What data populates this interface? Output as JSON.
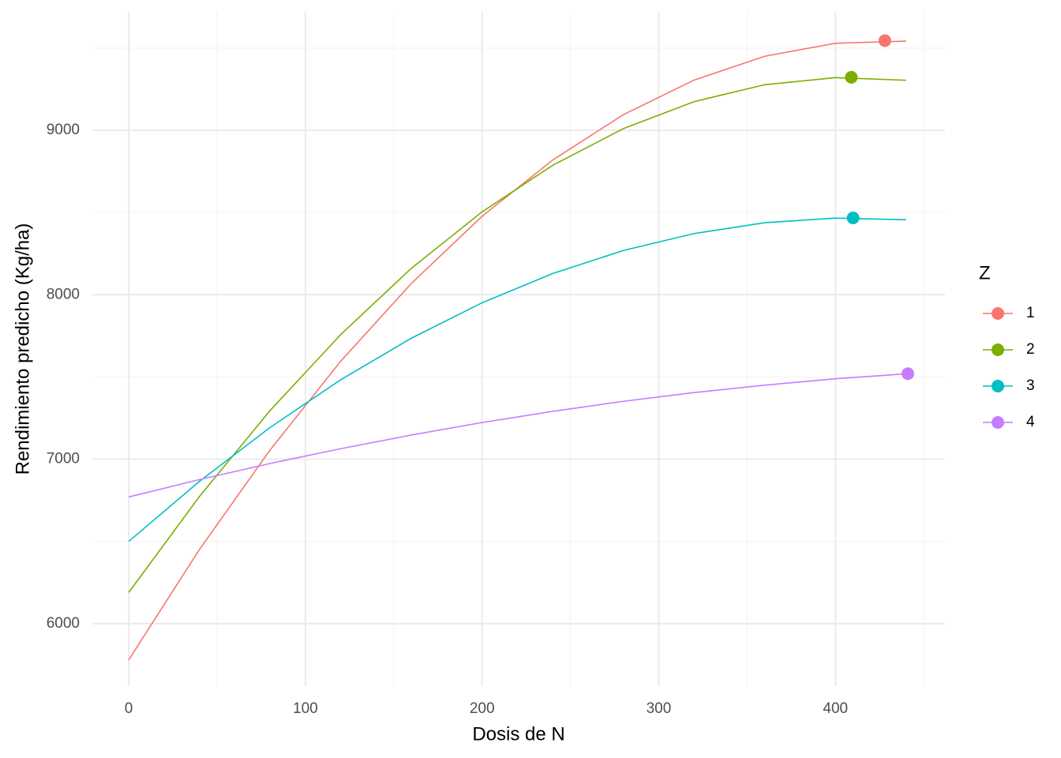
{
  "chart_data": {
    "type": "line",
    "xlabel": "Dosis de N",
    "ylabel": "Rendimiento predicho (Kg/ha)",
    "x": [
      0,
      40,
      80,
      120,
      160,
      200,
      240,
      280,
      320,
      360,
      400,
      440
    ],
    "series": [
      {
        "name": "1",
        "color": "#F8766D",
        "values": [
          5780,
          6451,
          7056,
          7596,
          8069,
          8477,
          8819,
          9095,
          9305,
          9450,
          9529,
          9542
        ],
        "point_x": 428,
        "point_y": 9545
      },
      {
        "name": "2",
        "color": "#7CAE00",
        "values": [
          6190,
          6773,
          7296,
          7758,
          8161,
          8504,
          8787,
          9010,
          9174,
          9277,
          9320,
          9304
        ],
        "point_x": 409,
        "point_y": 9322
      },
      {
        "name": "3",
        "color": "#00BFC4",
        "values": [
          6500,
          6865,
          7193,
          7483,
          7736,
          7951,
          8129,
          8269,
          8372,
          8438,
          8466,
          8456
        ],
        "point_x": 410,
        "point_y": 8467
      },
      {
        "name": "4",
        "color": "#C77CFF",
        "values": [
          6770,
          6876,
          6974,
          7064,
          7147,
          7223,
          7291,
          7352,
          7405,
          7450,
          7489,
          7519
        ],
        "point_x": 441,
        "point_y": 7520
      }
    ],
    "legend_title": "Z",
    "legend_position": "right",
    "xlim": [
      -20.6,
      462
    ],
    "ylim": [
      5620,
      9720
    ],
    "xticks": [
      0,
      100,
      200,
      300,
      400
    ],
    "yticks": [
      6000,
      7000,
      8000,
      9000
    ],
    "xminor_ticks": [
      50,
      150,
      250,
      350,
      450
    ],
    "yminor_ticks": [
      6500,
      7500,
      8500,
      9500
    ],
    "grid": true
  }
}
